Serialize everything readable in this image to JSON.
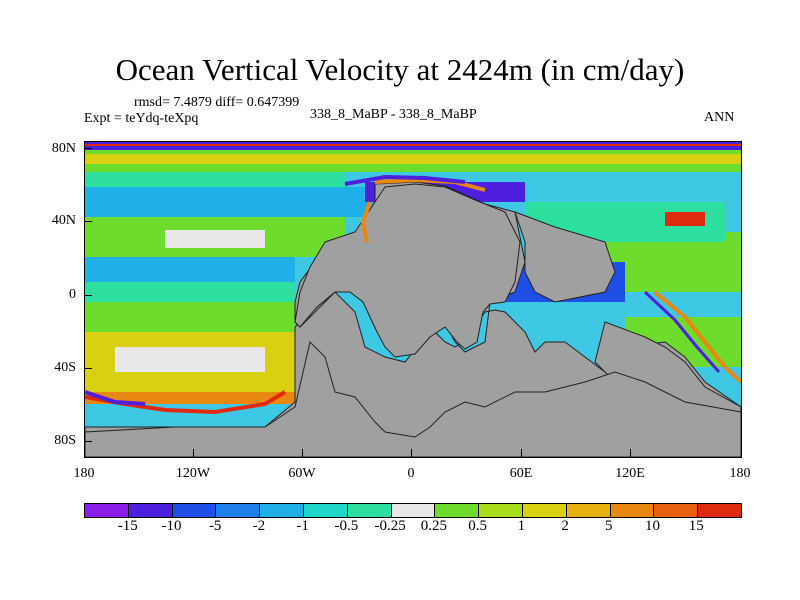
{
  "title": "Ocean Vertical Velocity at 2424m (in cm/day)",
  "stats": "rmsd= 7.4879 diff= 0.647399",
  "experiment": "Expt = teYdq-teXpq",
  "comparison": "338_8_MaBP - 338_8_MaBP",
  "season": "ANN",
  "lat_labels": [
    "80N",
    "40N",
    "0",
    "40S",
    "80S"
  ],
  "lon_labels": [
    "180",
    "120W",
    "60W",
    "0",
    "60E",
    "120E",
    "180"
  ],
  "colorbar": {
    "colors": [
      "#8a1ee8",
      "#4f1fe0",
      "#1f4fe6",
      "#1e7fe8",
      "#1fb0e8",
      "#1fd6c8",
      "#2ee0a0",
      "#e8e8e8",
      "#6ddc2c",
      "#a8dc1c",
      "#d8d010",
      "#e8b010",
      "#e88810",
      "#e86010",
      "#e02a10"
    ],
    "labels": [
      "-15",
      "-10",
      "-5",
      "-2",
      "-1",
      "-0.5",
      "-0.25",
      "0.25",
      "0.5",
      "1",
      "2",
      "5",
      "10",
      "15"
    ]
  },
  "map_colors": {
    "land": "#a0a0a0",
    "ocean_base": "#3fc8e4"
  }
}
